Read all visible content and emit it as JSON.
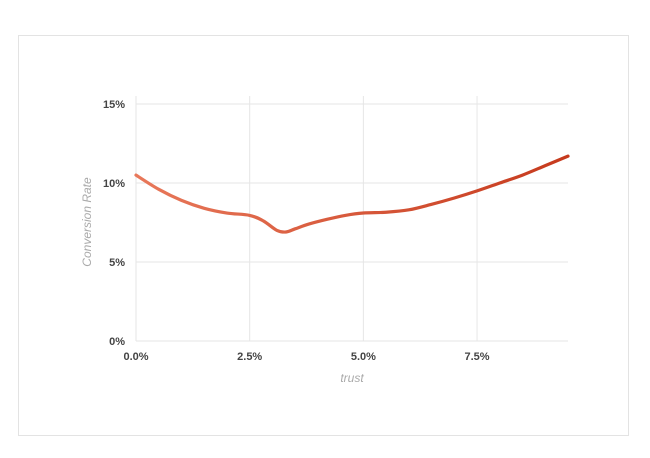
{
  "chart_data": {
    "type": "line",
    "title": "",
    "xlabel": "trust",
    "ylabel": "Conversion Rate",
    "x_tick_labels": [
      "0.0%",
      "2.5%",
      "5.0%",
      "7.5%"
    ],
    "y_tick_labels": [
      "0%",
      "5%",
      "10%",
      "15%"
    ],
    "xlim": [
      0,
      9.5
    ],
    "ylim": [
      0,
      15
    ],
    "grid": true,
    "legend": "none",
    "series": [
      {
        "color_start": "#e8785a",
        "color_end": "#c63a1d",
        "points": [
          [
            0.0,
            10.5
          ],
          [
            0.5,
            9.6
          ],
          [
            1.0,
            8.9
          ],
          [
            1.5,
            8.4
          ],
          [
            2.0,
            8.1
          ],
          [
            2.5,
            7.95
          ],
          [
            2.8,
            7.6
          ],
          [
            3.1,
            7.0
          ],
          [
            3.3,
            6.9
          ],
          [
            3.5,
            7.1
          ],
          [
            3.8,
            7.4
          ],
          [
            4.2,
            7.7
          ],
          [
            4.6,
            7.95
          ],
          [
            5.0,
            8.1
          ],
          [
            5.5,
            8.15
          ],
          [
            6.0,
            8.3
          ],
          [
            6.5,
            8.65
          ],
          [
            7.0,
            9.05
          ],
          [
            7.5,
            9.5
          ],
          [
            8.0,
            10.0
          ],
          [
            8.5,
            10.5
          ],
          [
            9.0,
            11.1
          ],
          [
            9.5,
            11.7
          ]
        ]
      }
    ]
  }
}
